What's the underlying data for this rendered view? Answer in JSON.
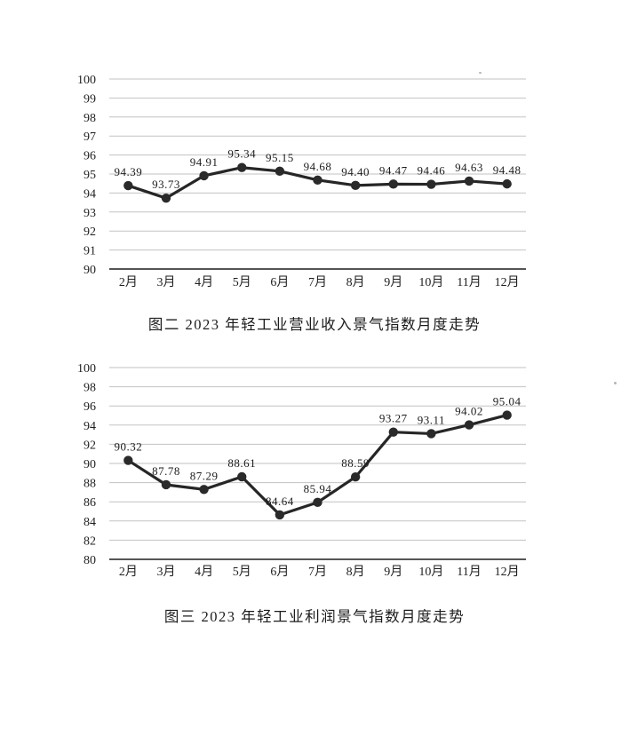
{
  "document": {
    "figure_revenue": {
      "caption": "图二  2023 年轻工业营业收入景气指数月度走势"
    },
    "figure_profit": {
      "caption": "图三  2023 年轻工业利润景气指数月度走势"
    }
  },
  "chart_data": [
    {
      "type": "line",
      "title": "图二 2023 年轻工业营业收入景气指数月度走势",
      "categories": [
        "2月",
        "3月",
        "4月",
        "5月",
        "6月",
        "7月",
        "8月",
        "9月",
        "10月",
        "11月",
        "12月"
      ],
      "values": [
        94.39,
        93.73,
        94.91,
        95.34,
        95.15,
        94.68,
        94.4,
        94.47,
        94.46,
        94.63,
        94.48
      ],
      "xlabel": "",
      "ylabel": "",
      "ylim": [
        90,
        100
      ],
      "ytick_step": 1,
      "grid": true,
      "legend": "none",
      "data_labels": true,
      "line_color": "#262626",
      "marker_color": "#2a2a2a",
      "gridline_color": "#c2c2c2",
      "axis_color": "#3d3d3d"
    },
    {
      "type": "line",
      "title": "图三 2023 年轻工业利润景气指数月度走势",
      "categories": [
        "2月",
        "3月",
        "4月",
        "5月",
        "6月",
        "7月",
        "8月",
        "9月",
        "10月",
        "11月",
        "12月"
      ],
      "values": [
        90.32,
        87.78,
        87.29,
        88.61,
        84.64,
        85.94,
        88.59,
        93.27,
        93.11,
        94.02,
        95.04
      ],
      "xlabel": "",
      "ylabel": "",
      "ylim": [
        80,
        100
      ],
      "ytick_step": 2,
      "grid": true,
      "legend": "none",
      "data_labels": true,
      "line_color": "#262626",
      "marker_color": "#2a2a2a",
      "gridline_color": "#c2c2c2",
      "axis_color": "#3d3d3d"
    }
  ]
}
